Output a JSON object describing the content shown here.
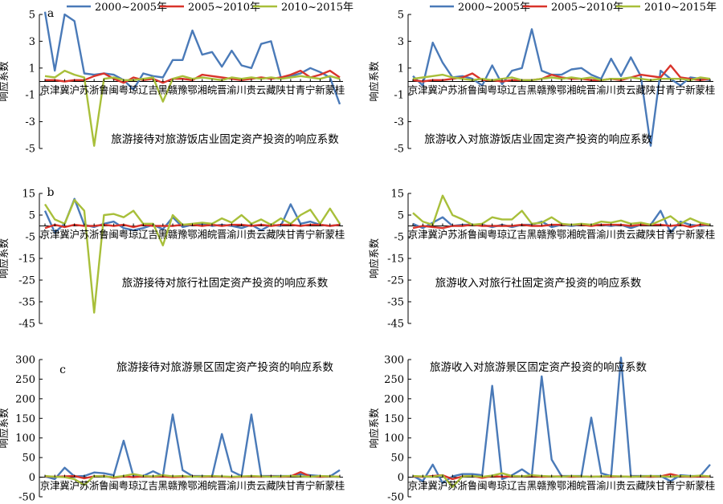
{
  "colors": {
    "2000~2005年": "#4a7ab8",
    "2005~2010年": "#d9342b",
    "2010~2015年": "#a8bf3a"
  },
  "chart_data": [
    {
      "type": "line",
      "panel": "a",
      "ylabel": "响应系数",
      "title": "旅游接待对旅游饭店业固定资产投资的响应系数",
      "ylim": [
        -5,
        5
      ],
      "yticks": [
        -5,
        -3,
        -1,
        1,
        3,
        5
      ],
      "categories": [
        "京",
        "津",
        "冀",
        "沪",
        "苏",
        "浙",
        "鲁",
        "闽",
        "粤",
        "琼",
        "辽",
        "吉",
        "黑",
        "赣",
        "豫",
        "鄂",
        "湘",
        "皖",
        "晋",
        "渝",
        "川",
        "贵",
        "云",
        "藏",
        "陕",
        "甘",
        "青",
        "宁",
        "新",
        "蒙",
        "桂"
      ],
      "series": [
        {
          "name": "2000~2005年",
          "values": [
            5.2,
            0.8,
            5.0,
            4.5,
            0.6,
            0.5,
            0.6,
            0.5,
            0.1,
            -0.6,
            0.6,
            0.4,
            0.3,
            1.6,
            1.6,
            3.8,
            2.0,
            2.2,
            1.1,
            2.3,
            1.2,
            1.0,
            2.8,
            3.0,
            0.3,
            0.4,
            0.6,
            1.0,
            0.7,
            0.3,
            -1.7
          ]
        },
        {
          "name": "2005~2010年",
          "values": [
            0.1,
            0.1,
            0.0,
            0.1,
            0.1,
            0.4,
            0.6,
            0.2,
            -0.1,
            0.3,
            0.1,
            0.2,
            -0.1,
            0.2,
            0.2,
            0.1,
            0.5,
            0.4,
            0.3,
            0.2,
            0.1,
            0.2,
            0.3,
            0.2,
            0.3,
            0.5,
            0.8,
            0.3,
            0.5,
            0.8,
            0.3
          ]
        },
        {
          "name": "2010~2015年",
          "values": [
            0.4,
            0.3,
            0.8,
            0.5,
            0.3,
            -4.8,
            0.2,
            0.3,
            0.1,
            0.1,
            0.2,
            0.3,
            -1.5,
            0.2,
            0.4,
            0.2,
            0.3,
            0.2,
            0.1,
            0.3,
            0.2,
            0.3,
            0.2,
            0.3,
            0.2,
            0.3,
            0.4,
            0.3,
            0.2,
            0.4,
            0.2
          ]
        }
      ]
    },
    {
      "type": "line",
      "panel": "",
      "ylabel": "响应系数",
      "title": "旅游收入对旅游饭店业固定资产投资的响应系数",
      "ylim": [
        -5,
        5
      ],
      "yticks": [
        -5,
        -3,
        -1,
        1,
        3,
        5
      ],
      "categories": [
        "京",
        "津",
        "冀",
        "沪",
        "苏",
        "浙",
        "鲁",
        "闽",
        "粤",
        "琼",
        "辽",
        "吉",
        "黑",
        "赣",
        "豫",
        "鄂",
        "湘",
        "皖",
        "晋",
        "渝",
        "川",
        "贵",
        "云",
        "藏",
        "陕",
        "甘",
        "青",
        "宁",
        "新",
        "蒙",
        "桂"
      ],
      "series": [
        {
          "name": "2000~2005年",
          "values": [
            0.4,
            -0.3,
            2.9,
            1.4,
            0.3,
            0.4,
            0.2,
            -0.3,
            1.2,
            -0.2,
            0.8,
            1.0,
            3.9,
            0.8,
            0.5,
            0.5,
            0.9,
            1.0,
            0.5,
            0.2,
            1.7,
            0.4,
            1.8,
            0.4,
            -4.8,
            0.8,
            0.2,
            -0.3,
            0.3,
            0.2,
            0.1
          ]
        },
        {
          "name": "2005~2010年",
          "values": [
            0.1,
            0.0,
            0.1,
            0.1,
            0.2,
            0.3,
            0.6,
            0.1,
            0.1,
            0.0,
            0.1,
            0.1,
            0.1,
            0.2,
            0.5,
            0.3,
            0.2,
            0.2,
            0.1,
            0.1,
            0.2,
            0.1,
            0.3,
            0.5,
            0.4,
            0.3,
            1.2,
            0.3,
            0.2,
            0.1,
            0.2
          ]
        },
        {
          "name": "2010~2015年",
          "values": [
            0.2,
            0.3,
            0.4,
            0.5,
            0.3,
            0.2,
            0.1,
            0.2,
            0.1,
            0.2,
            0.3,
            0.1,
            0.1,
            0.2,
            0.3,
            0.2,
            0.3,
            0.2,
            0.3,
            0.1,
            0.2,
            0.2,
            0.3,
            0.2,
            0.1,
            0.2,
            0.2,
            0.2,
            0.1,
            0.3,
            0.2
          ]
        }
      ]
    },
    {
      "type": "line",
      "panel": "b",
      "ylabel": "响应系数",
      "title": "旅游接待对旅行社固定资产投资的响应系数",
      "ylim": [
        -45,
        15
      ],
      "yticks": [
        -45,
        -35,
        -25,
        -15,
        -5,
        5,
        15
      ],
      "categories": [
        "京",
        "津",
        "冀",
        "沪",
        "苏",
        "浙",
        "鲁",
        "闽",
        "粤",
        "琼",
        "辽",
        "吉",
        "黑",
        "赣",
        "豫",
        "鄂",
        "湘",
        "皖",
        "晋",
        "渝",
        "川",
        "贵",
        "云",
        "藏",
        "陕",
        "甘",
        "青",
        "宁",
        "新",
        "蒙",
        "桂"
      ],
      "series": [
        {
          "name": "2000~2005年",
          "values": [
            7.0,
            -3.0,
            1.0,
            12.5,
            0.5,
            -0.5,
            1.0,
            2.0,
            -1.0,
            -2.0,
            -1.0,
            0.5,
            -1.5,
            4.0,
            -0.5,
            0.5,
            1.0,
            0.0,
            0.5,
            0.0,
            -1.0,
            0.5,
            -2.0,
            0.5,
            0.0,
            10.0,
            1.0,
            2.0,
            0.5,
            0.0,
            0.5
          ]
        },
        {
          "name": "2005~2010年",
          "values": [
            -1.0,
            0.5,
            -0.5,
            0.5,
            0.0,
            0.0,
            0.5,
            0.0,
            0.5,
            -0.5,
            0.5,
            0.0,
            0.0,
            0.0,
            0.5,
            0.5,
            0.0,
            0.5,
            0.0,
            0.5,
            0.5,
            0.0,
            0.5,
            0.0,
            0.5,
            0.5,
            0.0,
            0.5,
            0.5,
            0.0,
            0.5
          ]
        },
        {
          "name": "2010~2015年",
          "values": [
            10.0,
            3.0,
            1.0,
            12.0,
            7.0,
            -40.0,
            5.0,
            5.5,
            4.0,
            7.0,
            1.0,
            1.0,
            -9.0,
            5.0,
            0.5,
            1.0,
            1.5,
            1.0,
            3.5,
            1.5,
            5.0,
            1.0,
            3.0,
            0.5,
            3.5,
            1.0,
            5.0,
            7.5,
            1.0,
            8.0,
            1.0
          ]
        }
      ]
    },
    {
      "type": "line",
      "panel": "",
      "ylabel": "响应系数",
      "title": "旅游收入对旅行社固定资产投资的响应系数",
      "ylim": [
        -45,
        15
      ],
      "yticks": [
        -45,
        -35,
        -25,
        -15,
        -5,
        5,
        15
      ],
      "categories": [
        "京",
        "津",
        "冀",
        "沪",
        "苏",
        "浙",
        "鲁",
        "闽",
        "粤",
        "琼",
        "辽",
        "吉",
        "黑",
        "赣",
        "豫",
        "鄂",
        "湘",
        "皖",
        "晋",
        "渝",
        "川",
        "贵",
        "云",
        "藏",
        "陕",
        "甘",
        "青",
        "宁",
        "新",
        "蒙",
        "桂"
      ],
      "series": [
        {
          "name": "2000~2005年",
          "values": [
            1.0,
            -1.0,
            1.5,
            4.0,
            0.0,
            0.5,
            0.5,
            0.5,
            -0.5,
            0.5,
            -0.5,
            0.5,
            0.5,
            2.0,
            -0.5,
            0.5,
            0.0,
            0.5,
            0.5,
            0.5,
            0.0,
            0.5,
            -1.0,
            0.5,
            0.5,
            7.0,
            -3.0,
            2.0,
            0.5,
            0.0,
            0.5
          ]
        },
        {
          "name": "2005~2010年",
          "values": [
            -1.0,
            0.0,
            -0.5,
            -1.0,
            0.0,
            0.0,
            0.5,
            0.0,
            0.0,
            0.0,
            0.0,
            0.5,
            0.0,
            0.0,
            0.5,
            0.5,
            0.5,
            0.5,
            0.0,
            0.5,
            0.5,
            0.5,
            0.0,
            0.5,
            0.5,
            0.5,
            0.0,
            0.5,
            -0.5,
            0.5,
            0.5
          ]
        },
        {
          "name": "2010~2015年",
          "values": [
            6.0,
            2.0,
            0.5,
            14.0,
            5.0,
            3.0,
            0.5,
            1.0,
            4.0,
            3.0,
            3.0,
            7.0,
            1.0,
            1.5,
            4.0,
            1.0,
            0.5,
            1.0,
            0.5,
            2.0,
            1.5,
            2.5,
            1.0,
            1.5,
            0.5,
            2.5,
            4.5,
            1.0,
            3.5,
            1.5,
            0.5
          ]
        }
      ]
    },
    {
      "type": "line",
      "panel": "c",
      "ylabel": "响应系数",
      "title": "旅游接待对旅游景区固定资产投资的响应系数",
      "ylim": [
        -50,
        300
      ],
      "yticks": [
        -50,
        0,
        50,
        100,
        150,
        200,
        250,
        300
      ],
      "categories": [
        "京",
        "津",
        "冀",
        "沪",
        "苏",
        "浙",
        "鲁",
        "闽",
        "粤",
        "琼",
        "辽",
        "吉",
        "黑",
        "赣",
        "豫",
        "鄂",
        "湘",
        "皖",
        "晋",
        "渝",
        "川",
        "贵",
        "云",
        "藏",
        "陕",
        "甘",
        "青",
        "宁",
        "新",
        "蒙",
        "桂"
      ],
      "series": [
        {
          "name": "2000~2005年",
          "values": [
            2,
            -5,
            24,
            2,
            3,
            12,
            10,
            5,
            93,
            2,
            3,
            15,
            3,
            160,
            18,
            3,
            3,
            2,
            110,
            15,
            3,
            160,
            3,
            3,
            3,
            3,
            8,
            5,
            3,
            2,
            18
          ]
        },
        {
          "name": "2005~2010年",
          "values": [
            2,
            1,
            2,
            3,
            -3,
            2,
            3,
            -2,
            2,
            0,
            2,
            1,
            2,
            0,
            1,
            2,
            1,
            2,
            1,
            0,
            1,
            2,
            1,
            2,
            1,
            2,
            13,
            2,
            1,
            2,
            1
          ]
        },
        {
          "name": "2010~2015年",
          "values": [
            3,
            1,
            0,
            -5,
            -20,
            3,
            2,
            0,
            3,
            8,
            3,
            2,
            5,
            2,
            3,
            1,
            2,
            3,
            2,
            1,
            2,
            3,
            2,
            1,
            2,
            3,
            2,
            1,
            3,
            2,
            1
          ]
        }
      ]
    },
    {
      "type": "line",
      "panel": "",
      "ylabel": "响应系数",
      "title": "旅游收入对旅游景区固定资产投资的响应系数",
      "ylim": [
        -50,
        300
      ],
      "yticks": [
        -50,
        0,
        50,
        100,
        150,
        200,
        250,
        300
      ],
      "categories": [
        "京",
        "津",
        "冀",
        "沪",
        "苏",
        "浙",
        "鲁",
        "闽",
        "粤",
        "琼",
        "辽",
        "吉",
        "黑",
        "赣",
        "豫",
        "鄂",
        "湘",
        "皖",
        "晋",
        "渝",
        "川",
        "贵",
        "云",
        "藏",
        "陕",
        "甘",
        "青",
        "宁",
        "新",
        "蒙",
        "桂"
      ],
      "series": [
        {
          "name": "2000~2005年",
          "values": [
            3,
            -10,
            32,
            -15,
            2,
            8,
            8,
            5,
            233,
            -5,
            5,
            20,
            3,
            257,
            45,
            3,
            3,
            3,
            152,
            10,
            3,
            305,
            3,
            3,
            3,
            3,
            -10,
            5,
            3,
            3,
            32
          ]
        },
        {
          "name": "2005~2010年",
          "values": [
            2,
            1,
            3,
            5,
            -5,
            2,
            3,
            -2,
            3,
            1,
            2,
            2,
            3,
            1,
            2,
            2,
            1,
            2,
            1,
            2,
            1,
            2,
            1,
            2,
            1,
            2,
            8,
            2,
            1,
            2,
            1
          ]
        },
        {
          "name": "2010~2015年",
          "values": [
            3,
            2,
            1,
            5,
            -25,
            2,
            3,
            1,
            4,
            10,
            3,
            2,
            5,
            3,
            2,
            1,
            3,
            2,
            1,
            2,
            3,
            2,
            1,
            2,
            3,
            2,
            1,
            3,
            2,
            4,
            2
          ]
        }
      ]
    }
  ]
}
